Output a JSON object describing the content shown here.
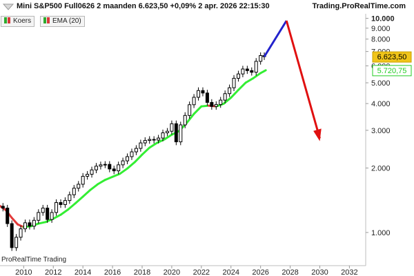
{
  "header": {
    "title": "Mini S&P500 Full0626 2 maanden 6.623,50 +0,09% 2 apr. 2026 22:15:30",
    "site": "Trading.ProRealTime.com"
  },
  "legend": [
    {
      "label": "Koers",
      "colors": [
        "#2eaa2e",
        "#d83a3a"
      ]
    },
    {
      "label": "EMA (20)",
      "colors": [
        "#2eaa2e",
        "#d83a3a"
      ]
    }
  ],
  "watermark": "ProRealTime Trading",
  "price_tags": {
    "last": {
      "label": "6.623,50",
      "value": 6623.5,
      "bg": "#f0c419",
      "fg": "#000000"
    },
    "ema": {
      "label": "5.720,75",
      "value": 5720.75,
      "bg": "#ffffff",
      "fg": "#22cc22"
    }
  },
  "chart_data": {
    "type": "line",
    "y_scale": "log",
    "ylim": [
      700,
      10500
    ],
    "xlim": [
      2008.4,
      2033.1
    ],
    "ytick_labels": [
      {
        "value": 1000,
        "label": "1.000"
      },
      {
        "value": 2000,
        "label": "2.000"
      },
      {
        "value": 3000,
        "label": "3.000"
      },
      {
        "value": 4000,
        "label": "4.000"
      },
      {
        "value": 5000,
        "label": "5.000"
      },
      {
        "value": 6000,
        "label": "6.000"
      },
      {
        "value": 7000,
        "label": "7.000"
      },
      {
        "value": 8000,
        "label": "8.000"
      },
      {
        "value": 9000,
        "label": "9.000"
      },
      {
        "value": 10000,
        "label": "10.000"
      }
    ],
    "xtick_labels": [
      "2010",
      "2012",
      "2014",
      "2016",
      "2018",
      "2020",
      "2022",
      "2024",
      "2026",
      "2028",
      "2030",
      "2032"
    ],
    "xtick_values": [
      2010,
      2012,
      2014,
      2016,
      2018,
      2020,
      2022,
      2024,
      2026,
      2028,
      2030,
      2032
    ],
    "series": [
      {
        "name": "Koers",
        "style": "candlestick",
        "x": [
          2008.6,
          2008.9,
          2009.2,
          2009.5,
          2009.8,
          2010.1,
          2010.4,
          2010.7,
          2011.0,
          2011.3,
          2011.6,
          2011.9,
          2012.2,
          2012.5,
          2012.8,
          2013.1,
          2013.4,
          2013.7,
          2014.0,
          2014.3,
          2014.6,
          2014.9,
          2015.2,
          2015.5,
          2015.8,
          2016.1,
          2016.4,
          2016.7,
          2017.0,
          2017.3,
          2017.6,
          2017.9,
          2018.2,
          2018.5,
          2018.8,
          2019.1,
          2019.4,
          2019.7,
          2020.0,
          2020.3,
          2020.6,
          2020.9,
          2021.2,
          2021.5,
          2021.8,
          2022.1,
          2022.4,
          2022.7,
          2023.0,
          2023.3,
          2023.6,
          2023.9,
          2024.2,
          2024.5,
          2024.8,
          2025.1,
          2025.4,
          2025.7,
          2026.0,
          2026.25
        ],
        "values": [
          1300,
          1100,
          850,
          950,
          1040,
          1110,
          1070,
          1140,
          1240,
          1300,
          1150,
          1240,
          1380,
          1350,
          1410,
          1500,
          1610,
          1680,
          1830,
          1870,
          1960,
          2040,
          2070,
          2080,
          1980,
          1940,
          2070,
          2160,
          2260,
          2380,
          2470,
          2620,
          2690,
          2720,
          2700,
          2760,
          2920,
          2970,
          3220,
          2650,
          3180,
          3520,
          3950,
          4280,
          4600,
          4480,
          4050,
          3880,
          3960,
          4150,
          4450,
          4740,
          5250,
          5500,
          5800,
          5700,
          5600,
          6300,
          6700,
          6623.5
        ]
      },
      {
        "name": "EMA (20)",
        "style": "line",
        "x": [
          2008.4,
          2008.8,
          2009.2,
          2009.6,
          2010.0,
          2010.5,
          2011.0,
          2011.5,
          2012.0,
          2012.5,
          2013.0,
          2013.5,
          2014.0,
          2014.5,
          2015.0,
          2015.5,
          2016.0,
          2016.5,
          2017.0,
          2017.5,
          2018.0,
          2018.5,
          2019.0,
          2019.5,
          2020.0,
          2020.5,
          2021.0,
          2021.5,
          2022.0,
          2022.5,
          2023.0,
          2023.5,
          2024.0,
          2024.5,
          2025.0,
          2025.5,
          2026.0,
          2026.35
        ],
        "values": [
          1330,
          1270,
          1170,
          1090,
          1060,
          1070,
          1100,
          1120,
          1160,
          1210,
          1280,
          1370,
          1470,
          1580,
          1680,
          1760,
          1820,
          1880,
          1990,
          2130,
          2310,
          2490,
          2620,
          2720,
          2860,
          2980,
          3240,
          3580,
          3880,
          3910,
          3880,
          3990,
          4260,
          4630,
          5010,
          5250,
          5550,
          5720.75
        ],
        "rising_color": "#33ee33",
        "falling_color": "#e23a3a"
      },
      {
        "name": "projection-up",
        "style": "line",
        "color": "#2222cc",
        "x": [
          2026.25,
          2027.75
        ],
        "values": [
          6623.5,
          9750
        ]
      },
      {
        "name": "projection-down",
        "style": "arrow",
        "color": "#e01010",
        "x": [
          2027.75,
          2030.0
        ],
        "values": [
          9750,
          2750
        ]
      }
    ],
    "grid": false,
    "legend_position": "top-left"
  }
}
